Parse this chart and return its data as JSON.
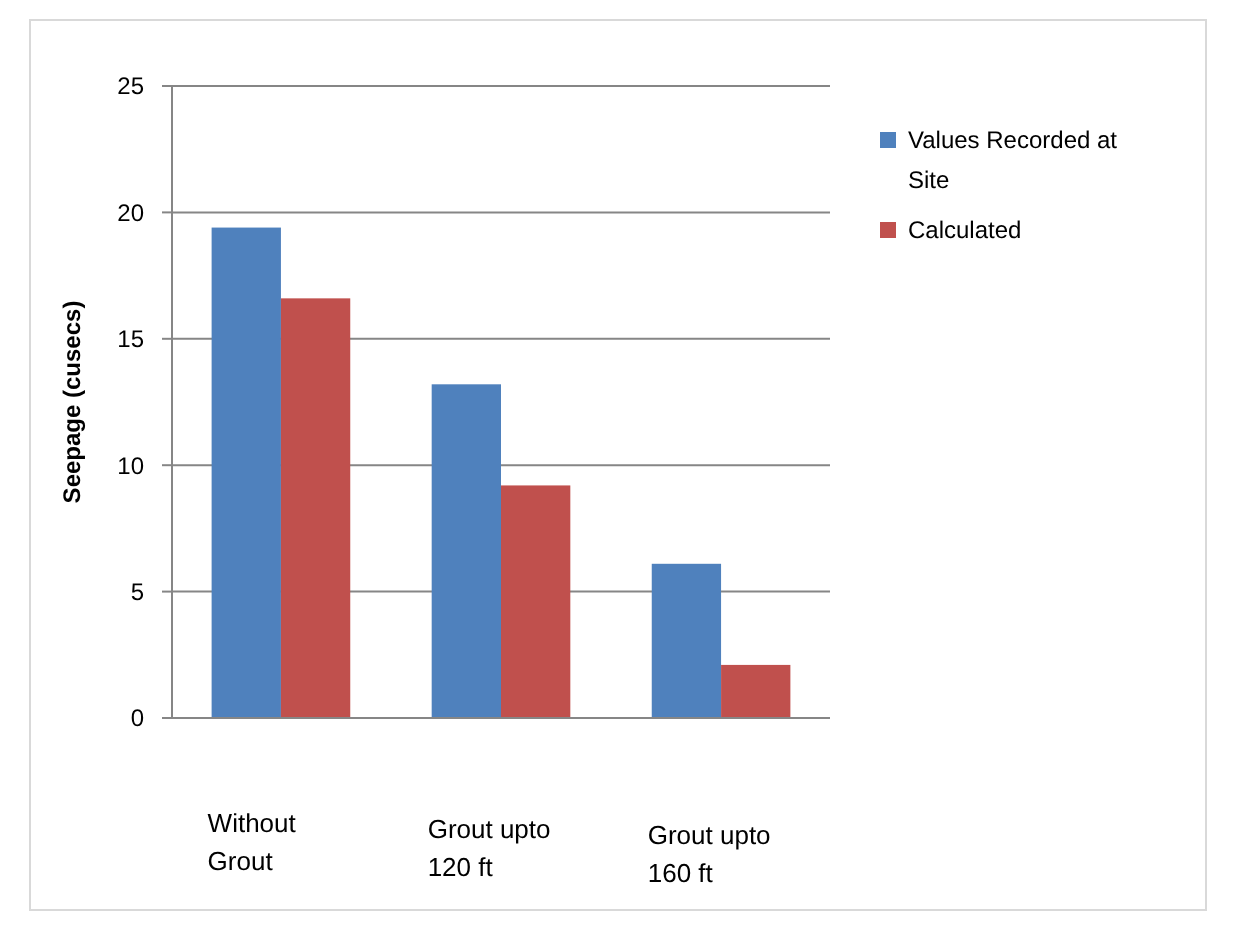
{
  "chart_data": {
    "type": "bar",
    "ylabel": "Seepage (cusecs)",
    "categories": [
      "Without Grout",
      "Grout upto 120 ft",
      "Grout upto 160 ft"
    ],
    "series": [
      {
        "name": "Values Recorded at Site",
        "color": "#4f81bd",
        "values": [
          19.4,
          13.2,
          6.1
        ]
      },
      {
        "name": "Calculated",
        "color": "#c0504d",
        "values": [
          16.6,
          9.2,
          2.1
        ]
      }
    ],
    "ylim": [
      0,
      25
    ],
    "yticks": [
      0,
      5,
      10,
      15,
      20,
      25
    ],
    "grid": "y",
    "legend": "right"
  }
}
